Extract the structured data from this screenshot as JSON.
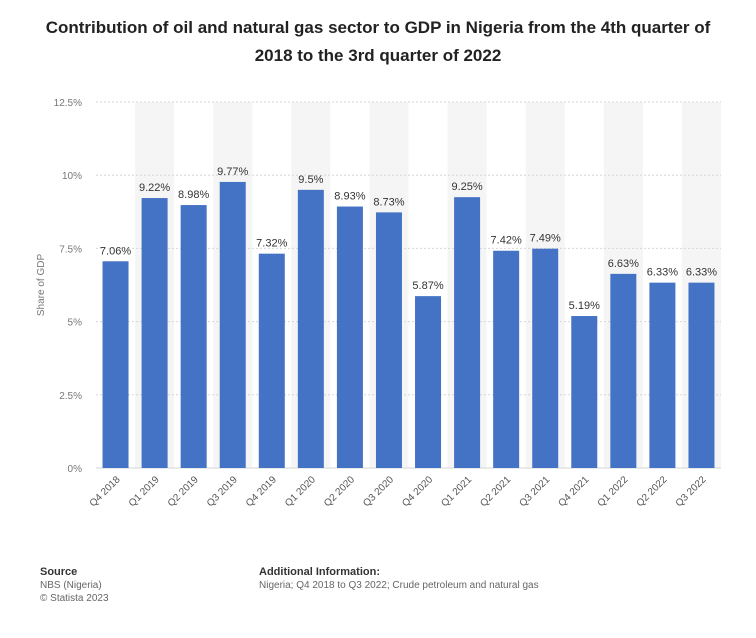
{
  "chart_data": {
    "type": "bar",
    "title": "Contribution of oil and natural gas sector to GDP in Nigeria from the 4th quarter of 2018 to the 3rd quarter of 2022",
    "xlabel": "",
    "ylabel": "Share of GDP",
    "ylim": [
      0,
      12.5
    ],
    "yticks": [
      0,
      2.5,
      5,
      7.5,
      10,
      12.5
    ],
    "ytick_labels": [
      "0%",
      "2.5%",
      "5%",
      "7.5%",
      "10%",
      "12.5%"
    ],
    "categories": [
      "Q4 2018",
      "Q1 2019",
      "Q2 2019",
      "Q3 2019",
      "Q4 2019",
      "Q1 2020",
      "Q2 2020",
      "Q3 2020",
      "Q4 2020",
      "Q1 2021",
      "Q2 2021",
      "Q3 2021",
      "Q4 2021",
      "Q1 2022",
      "Q2 2022",
      "Q3 2022"
    ],
    "values": [
      7.06,
      9.22,
      8.98,
      9.77,
      7.32,
      9.5,
      8.93,
      8.73,
      5.87,
      9.25,
      7.42,
      7.49,
      5.19,
      6.63,
      6.33,
      6.33
    ],
    "value_labels": [
      "7.06%",
      "9.22%",
      "8.98%",
      "9.77%",
      "7.32%",
      "9.5%",
      "8.93%",
      "8.73%",
      "5.87%",
      "9.25%",
      "7.42%",
      "7.49%",
      "5.19%",
      "6.63%",
      "6.33%",
      "6.33%"
    ],
    "bar_color": "#4472c4",
    "grid": true
  },
  "footer": {
    "source_heading": "Source",
    "source_line1": "NBS (Nigeria)",
    "source_line2": "© Statista 2023",
    "info_heading": "Additional Information:",
    "info_text": "Nigeria; Q4 2018 to Q3 2022; Crude petroleum and natural gas"
  }
}
